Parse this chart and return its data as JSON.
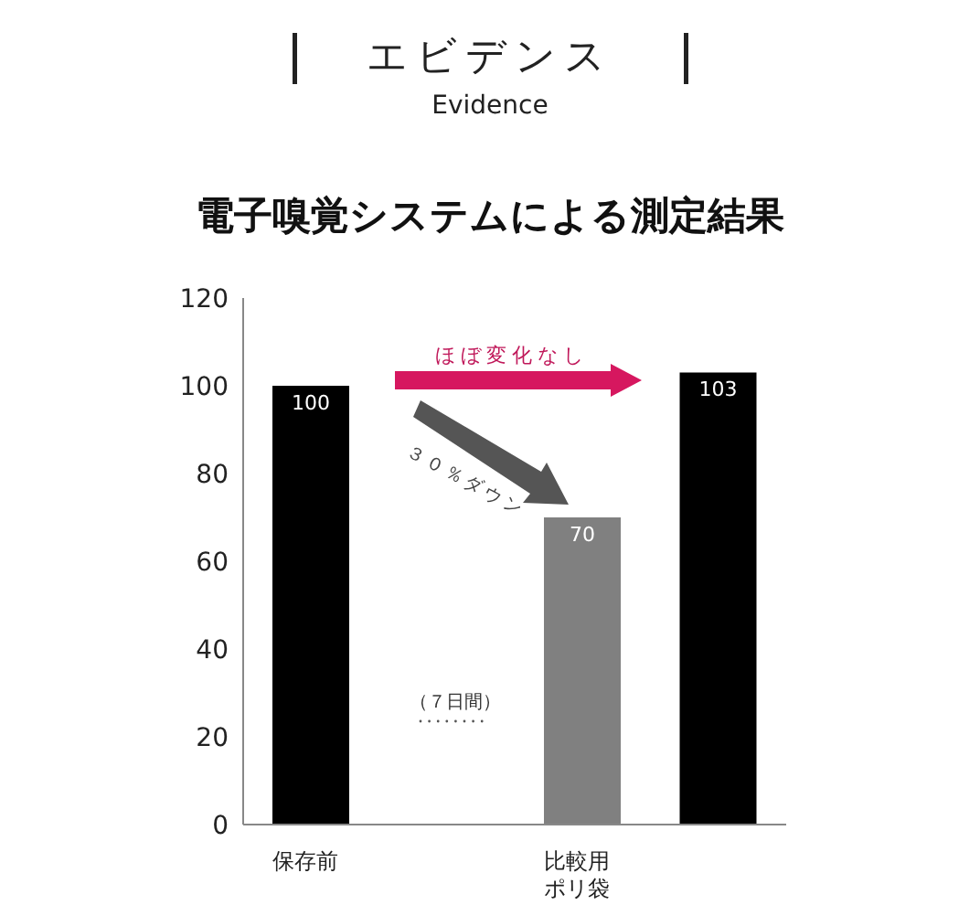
{
  "chart_data": {
    "type": "bar",
    "title": "エビデンス",
    "subtitle": "Evidence",
    "categories": [
      "保存前",
      null,
      "比較用ポリ袋",
      null
    ],
    "values": [
      100,
      null,
      70,
      103
    ],
    "colors": [
      "#000000",
      "#000000",
      "#808080",
      "#000000"
    ],
    "ylim": [
      0,
      120
    ],
    "yticks": [
      0,
      20,
      40,
      60,
      80,
      100,
      120
    ],
    "data_labels": true,
    "grid": false,
    "legend": false,
    "annotations": [
      "電子嗅覚システムによる測定結果",
      "ほぼ変化なし",
      "３０％ダウン",
      "（７日間）"
    ]
  }
}
